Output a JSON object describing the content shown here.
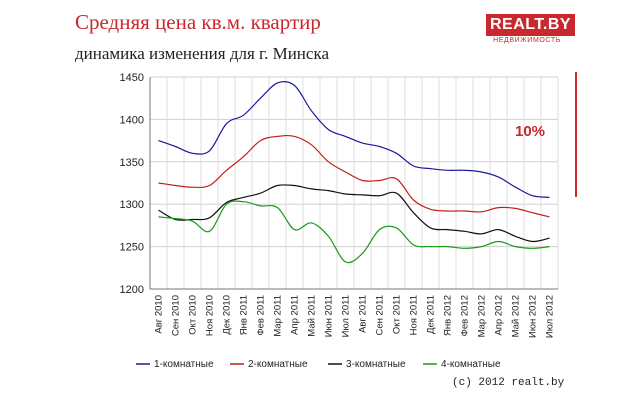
{
  "header": {
    "title": "Средняя цена кв.м. квартир",
    "subtitle": "динамика изменения для г. Минска"
  },
  "logo": {
    "main": "REALT.BY",
    "sub": "НЕДВИЖИМОСТЬ"
  },
  "footer": {
    "copyright": "(c) 2012 realt.by"
  },
  "scale_indicator": {
    "label": "10%",
    "color": "#c8282e"
  },
  "chart_data": {
    "type": "line",
    "title": "Средняя цена кв.м. квартир",
    "subtitle": "динамика изменения для г. Минска",
    "xlabel": "",
    "ylabel": "",
    "ylim": [
      1200,
      1450
    ],
    "yticks": [
      1200,
      1250,
      1300,
      1350,
      1400,
      1450
    ],
    "grid": true,
    "legend_position": "bottom",
    "categories": [
      "Авг 2010",
      "Сен 2010",
      "Окт 2010",
      "Ноя 2010",
      "Дек 2010",
      "Янв 2011",
      "Фев 2011",
      "Мар 2011",
      "Апр 2011",
      "Май 2011",
      "Июн 2011",
      "Июл 2011",
      "Авг 2011",
      "Сен 2011",
      "Окт 2011",
      "Ноя 2011",
      "Дек 2011",
      "Янв 2012",
      "Фев 2012",
      "Мар 2012",
      "Апр 2012",
      "Май 2012",
      "Июн 2012",
      "Июл 2012"
    ],
    "series": [
      {
        "name": "1-комнатные",
        "color": "#1a1a9e",
        "values": [
          1375,
          1368,
          1360,
          1363,
          1395,
          1405,
          1425,
          1443,
          1440,
          1410,
          1388,
          1380,
          1372,
          1368,
          1360,
          1345,
          1342,
          1340,
          1340,
          1338,
          1332,
          1320,
          1310,
          1308
        ]
      },
      {
        "name": "2-комнатные",
        "color": "#c0201a",
        "values": [
          1325,
          1322,
          1320,
          1322,
          1340,
          1356,
          1375,
          1380,
          1380,
          1370,
          1350,
          1338,
          1328,
          1328,
          1330,
          1305,
          1294,
          1292,
          1292,
          1291,
          1296,
          1295,
          1290,
          1285
        ]
      },
      {
        "name": "3-комнатные",
        "color": "#111111",
        "values": [
          1293,
          1282,
          1282,
          1284,
          1302,
          1308,
          1313,
          1322,
          1322,
          1318,
          1316,
          1312,
          1311,
          1310,
          1313,
          1290,
          1272,
          1270,
          1268,
          1265,
          1270,
          1262,
          1256,
          1260
        ]
      },
      {
        "name": "4-комнатные",
        "color": "#1a9a1a",
        "values": [
          1285,
          1283,
          1280,
          1268,
          1300,
          1303,
          1298,
          1296,
          1270,
          1278,
          1262,
          1232,
          1242,
          1270,
          1272,
          1252,
          1250,
          1250,
          1248,
          1250,
          1256,
          1250,
          1248,
          1250
        ]
      }
    ]
  }
}
